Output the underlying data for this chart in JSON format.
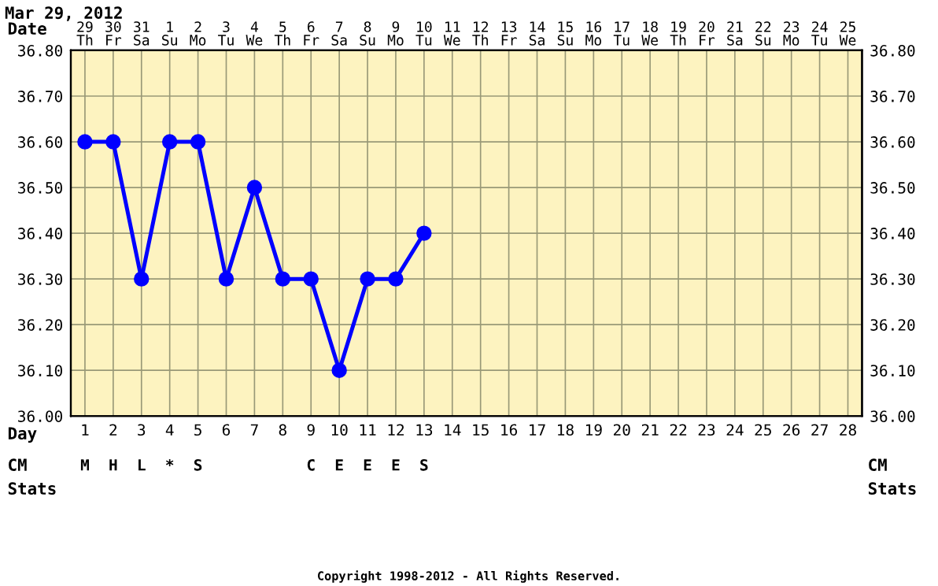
{
  "chart_data": {
    "type": "line",
    "categories": [
      "1",
      "2",
      "3",
      "4",
      "5",
      "6",
      "7",
      "8",
      "9",
      "10",
      "11",
      "12",
      "13",
      "14",
      "15",
      "16",
      "17",
      "18",
      "19",
      "20",
      "21",
      "22",
      "23",
      "24",
      "25",
      "26",
      "27",
      "28"
    ],
    "series": [
      {
        "color": "#0000ff",
        "values": [
          36.6,
          36.6,
          36.3,
          36.6,
          36.6,
          36.3,
          36.5,
          36.3,
          36.3,
          36.1,
          36.3,
          36.3,
          36.4,
          null,
          null,
          null,
          null,
          null,
          null,
          null,
          null,
          null,
          null,
          null,
          null,
          null,
          null,
          null
        ]
      }
    ],
    "marker": "circle",
    "line_style": "solid",
    "grid": true,
    "ylim": [
      36.0,
      36.8
    ],
    "yticks": [
      {
        "value": 36.0,
        "label": "36.00"
      },
      {
        "value": 36.1,
        "label": "36.10"
      },
      {
        "value": 36.2,
        "label": "36.20"
      },
      {
        "value": 36.3,
        "label": "36.30"
      },
      {
        "value": 36.4,
        "label": "36.40"
      },
      {
        "value": 36.5,
        "label": "36.50"
      },
      {
        "value": 36.6,
        "label": "36.60"
      },
      {
        "value": 36.7,
        "label": "36.70"
      },
      {
        "value": 36.8,
        "label": "36.80"
      }
    ],
    "y2lim": [
      36.0,
      36.8
    ],
    "y2ticks": [
      {
        "value": 36.0,
        "label": "36.00"
      },
      {
        "value": 36.1,
        "label": "36.10"
      },
      {
        "value": 36.2,
        "label": "36.20"
      },
      {
        "value": 36.3,
        "label": "36.30"
      },
      {
        "value": 36.4,
        "label": "36.40"
      },
      {
        "value": 36.5,
        "label": "36.50"
      },
      {
        "value": 36.6,
        "label": "36.60"
      },
      {
        "value": 36.7,
        "label": "36.70"
      },
      {
        "value": 36.8,
        "label": "36.80"
      }
    ],
    "annotations": [
      "Mar 29, 2012",
      "Date",
      "Day",
      "CM",
      "Stats",
      "CM",
      "Stats",
      "Copyright 1998-2012 - All Rights Reserved.",
      "29\nTh",
      "30\nFr",
      "31\nSa",
      "1\nSu",
      "2\nMo",
      "3\nTu",
      "4\nWe",
      "5\nTh",
      "6\nFr",
      "7\nSa",
      "8\nSu",
      "9\nMo",
      "10\nTu",
      "11\nWe",
      "12\nTh",
      "13\nFr",
      "14\nSa",
      "15\nSu",
      "16\nMo",
      "17\nTu",
      "18\nWe",
      "19\nTh",
      "20\nFr",
      "21\nSa",
      "22\nSu",
      "23\nMo",
      "24\nTu",
      "25\nWe",
      "M",
      "H",
      "L",
      "*",
      "S",
      null,
      null,
      null,
      "C",
      "E",
      "E",
      "E",
      "S",
      null,
      null,
      null,
      null,
      null,
      null,
      null,
      null,
      null,
      null,
      null,
      null,
      null,
      null,
      null
    ]
  }
}
